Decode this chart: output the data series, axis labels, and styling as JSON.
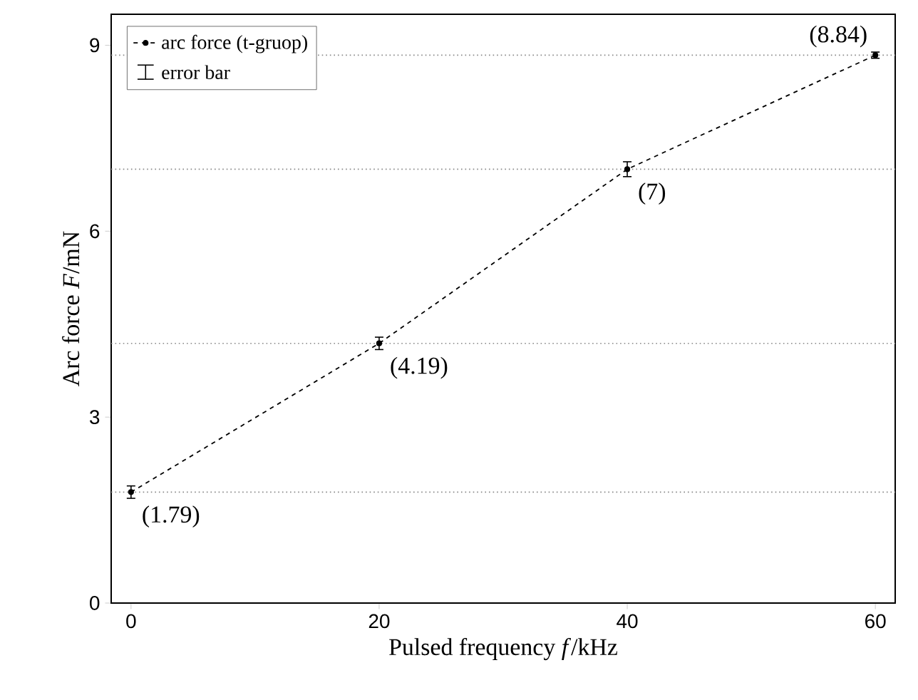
{
  "chart_data": {
    "type": "line",
    "xlabel": "Pulsed frequency  *f*/kHz",
    "ylabel": "Arc force  *F*/mN",
    "x": [
      0,
      20,
      40,
      60
    ],
    "series": [
      {
        "name": "arc force (t-gruop)",
        "color": "#000000",
        "values": [
          1.79,
          4.19,
          7,
          8.84
        ],
        "errors": [
          0.1,
          0.1,
          0.12,
          0.05
        ],
        "value_labels": [
          "(1.79)",
          "(4.19)",
          "(7)",
          "(8.84)"
        ]
      }
    ],
    "marker": "circle",
    "line_style": "dashed",
    "xlim": [
      -1.6,
      61.6
    ],
    "ylim": [
      0,
      9.5
    ],
    "xticks": [
      0,
      20,
      40,
      60
    ],
    "yticks": [
      0,
      3,
      6,
      9
    ],
    "ref_lines": [
      {
        "axis": "y",
        "value": 1.79,
        "color": "#888888",
        "line_style": "dotted"
      },
      {
        "axis": "y",
        "value": 4.19,
        "color": "#888888",
        "line_style": "dotted"
      },
      {
        "axis": "y",
        "value": 7,
        "color": "#888888",
        "line_style": "dotted"
      },
      {
        "axis": "y",
        "value": 8.84,
        "color": "#888888",
        "line_style": "dotted"
      }
    ],
    "annotations": [
      "error bar"
    ],
    "legend": "top left"
  }
}
